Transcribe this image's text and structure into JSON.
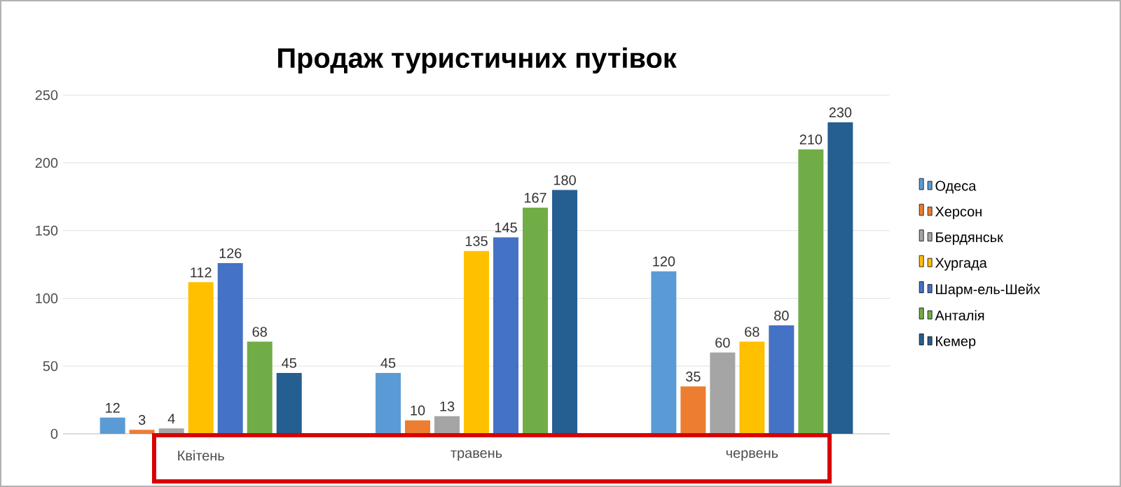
{
  "chart_data": {
    "type": "bar",
    "title": "Продаж туристичних путівок",
    "categories": [
      "Квітень",
      "травень",
      "червень"
    ],
    "series": [
      {
        "name": "Одеса",
        "color": "#5b9bd5",
        "values": [
          12,
          45,
          120
        ]
      },
      {
        "name": "Херсон",
        "color": "#ed7d31",
        "values": [
          3,
          10,
          35
        ]
      },
      {
        "name": "Бердянськ",
        "color": "#a5a5a5",
        "values": [
          4,
          13,
          60
        ]
      },
      {
        "name": "Хургада",
        "color": "#ffc000",
        "values": [
          112,
          135,
          68
        ]
      },
      {
        "name": "Шарм-ель-Шейх",
        "color": "#4472c4",
        "values": [
          126,
          145,
          80
        ]
      },
      {
        "name": "Анталія",
        "color": "#70ad47",
        "values": [
          68,
          167,
          210
        ]
      },
      {
        "name": "Кемер",
        "color": "#255e91",
        "values": [
          45,
          180,
          230
        ]
      }
    ],
    "ylim": [
      0,
      250
    ],
    "yticks": [
      0,
      50,
      100,
      150,
      200,
      250
    ],
    "grid": "y",
    "legend": "right",
    "data_labels": true
  }
}
